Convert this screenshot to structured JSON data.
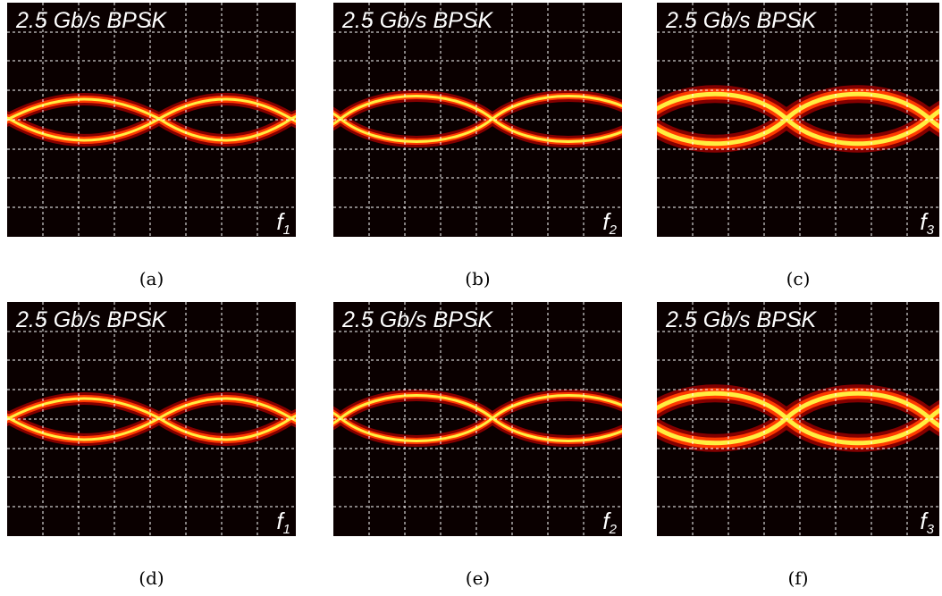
{
  "panels": [
    {
      "title": "2.5 Gb/s BPSK",
      "label": "f",
      "subscript": "1",
      "caption": "(a)"
    },
    {
      "title": "2.5 Gb/s BPSK",
      "label": "f",
      "subscript": "2",
      "caption": "(b)"
    },
    {
      "title": "2.5 Gb/s BPSK",
      "label": "f",
      "subscript": "3",
      "caption": "(c)"
    },
    {
      "title": "2.5 Gb/s BPSK",
      "label": "f",
      "subscript": "1",
      "caption": "(d)"
    },
    {
      "title": "2.5 Gb/s BPSK",
      "label": "f",
      "subscript": "2",
      "caption": "(e)"
    },
    {
      "title": "2.5 Gb/s BPSK",
      "label": "f",
      "subscript": "3",
      "caption": "(f)"
    }
  ]
}
